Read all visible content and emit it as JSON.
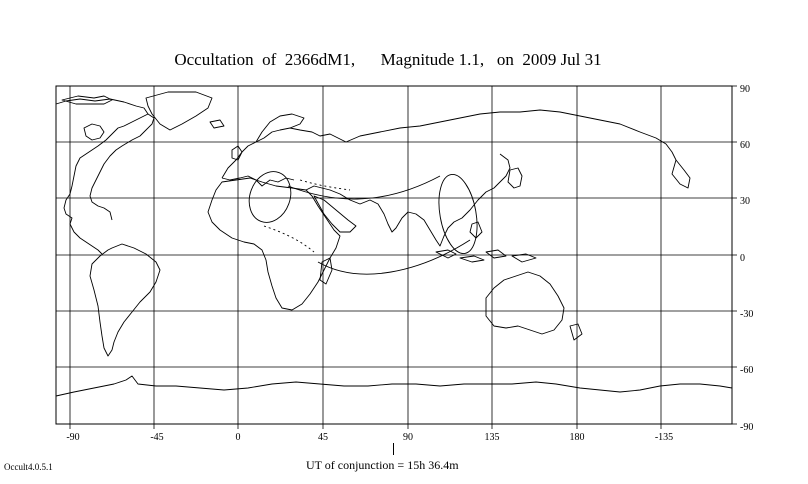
{
  "title": "Occultation  of  2366dM1,      Magnitude 1.1,   on  2009 Jul 31",
  "version": "Occult4.0.5.1",
  "conjunction_label": "UT of conjunction = 15h 36.4m",
  "map": {
    "lon_tick_labels": [
      "-90",
      "-45",
      "0",
      "45",
      "90",
      "135",
      "180",
      "-135"
    ],
    "lat_tick_labels": [
      "90",
      "60",
      "30",
      "0",
      "-30",
      "-60",
      "-90"
    ],
    "projection": "equirectangular",
    "center_longitude": 45,
    "grid": true
  }
}
